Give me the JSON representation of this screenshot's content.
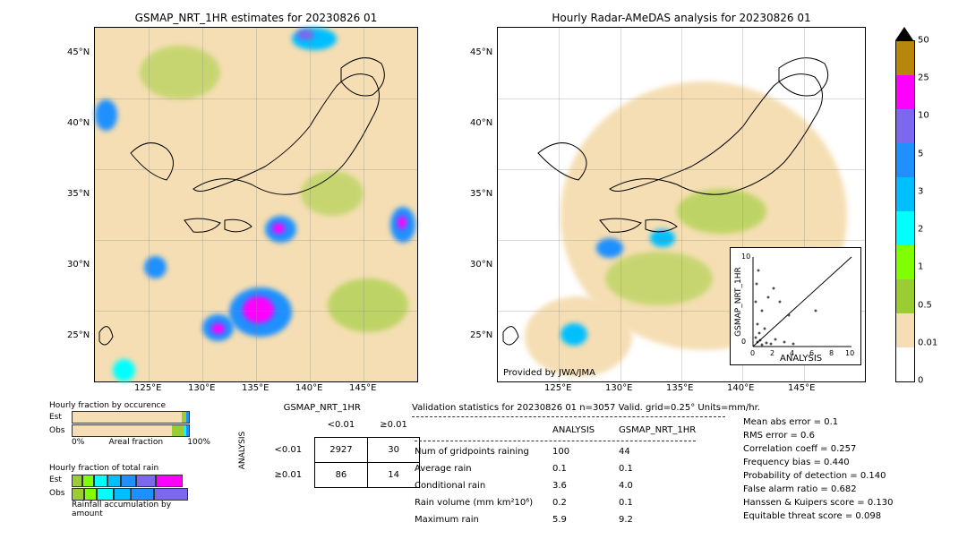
{
  "colors": {
    "bg_tan": "#f5deb3",
    "scale": [
      {
        "v": "0",
        "c": "#ffffff"
      },
      {
        "v": "0.01",
        "c": "#f5deb3"
      },
      {
        "v": "0.5",
        "c": "#9acd32"
      },
      {
        "v": "1",
        "c": "#7fff00"
      },
      {
        "v": "2",
        "c": "#00ffff"
      },
      {
        "v": "3",
        "c": "#00bfff"
      },
      {
        "v": "5",
        "c": "#1e90ff"
      },
      {
        "v": "10",
        "c": "#7b68ee"
      },
      {
        "v": "25",
        "c": "#ff00ff"
      },
      {
        "v": "50",
        "c": "#b8860b"
      }
    ],
    "arrow": "#000000"
  },
  "map_left": {
    "title": "GSMAP_NRT_1HR estimates for 20230826 01",
    "xticks": [
      "125°E",
      "130°E",
      "135°E",
      "140°E",
      "145°E"
    ],
    "yticks": [
      "25°N",
      "30°N",
      "35°N",
      "40°N",
      "45°N"
    ]
  },
  "map_right": {
    "title": "Hourly Radar-AMeDAS analysis for 20230826 01",
    "xticks": [
      "125°E",
      "130°E",
      "135°E",
      "140°E",
      "145°E"
    ],
    "yticks": [
      "25°N",
      "30°N",
      "35°N",
      "40°N",
      "45°N"
    ],
    "provider": "Provided by JWA/JMA"
  },
  "scatter": {
    "xlabel": "ANALYSIS",
    "ylabel": "GSMAP_NRT_1HR",
    "ticks": [
      "0",
      "2",
      "4",
      "6",
      "8",
      "10"
    ]
  },
  "occurrence": {
    "title": "Hourly fraction by occurence",
    "rows": [
      "Est",
      "Obs"
    ],
    "xl": "0%",
    "xr": "100%",
    "xlabel": "Areal fraction"
  },
  "totalrain": {
    "title": "Hourly fraction of total rain",
    "rows": [
      "Est",
      "Obs"
    ],
    "footer": "Rainfall accumulation by amount"
  },
  "contingency": {
    "col_title": "GSMAP_NRT_1HR",
    "row_title": "ANALYSIS",
    "col_h": [
      "<0.01",
      "≥0.01"
    ],
    "row_h": [
      "<0.01",
      "≥0.01"
    ],
    "cells": [
      [
        "2927",
        "30"
      ],
      [
        "86",
        "14"
      ]
    ]
  },
  "stats": {
    "title": "Validation statistics for 20230826 01  n=3057 Valid. grid=0.25° Units=mm/hr.",
    "cols": [
      "ANALYSIS",
      "GSMAP_NRT_1HR"
    ],
    "rows": [
      {
        "label": "Num of gridpoints raining",
        "a": "100",
        "b": "44"
      },
      {
        "label": "Average rain",
        "a": "0.1",
        "b": "0.1"
      },
      {
        "label": "Conditional rain",
        "a": "3.6",
        "b": "4.0"
      },
      {
        "label": "Rain volume (mm km²10⁶)",
        "a": "0.2",
        "b": "0.1"
      },
      {
        "label": "Maximum rain",
        "a": "5.9",
        "b": "9.2"
      }
    ],
    "metrics": [
      {
        "label": "Mean abs error =",
        "v": "0.1"
      },
      {
        "label": "RMS error =",
        "v": "0.6"
      },
      {
        "label": "Correlation coeff =",
        "v": "0.257"
      },
      {
        "label": "Frequency bias =",
        "v": "0.440"
      },
      {
        "label": "Probability of detection =",
        "v": "0.140"
      },
      {
        "label": "False alarm ratio =",
        "v": "0.682"
      },
      {
        "label": "Hanssen & Kuipers score =",
        "v": "0.130"
      },
      {
        "label": "Equitable threat score =",
        "v": "0.098"
      }
    ]
  }
}
